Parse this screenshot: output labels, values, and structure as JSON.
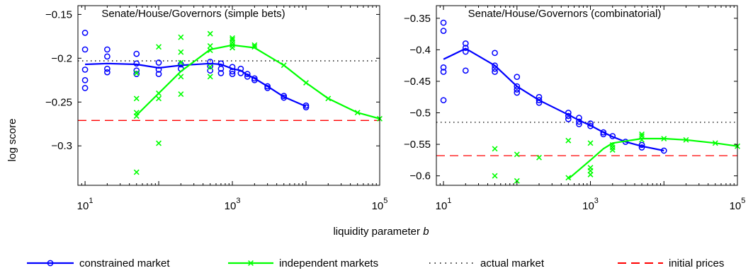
{
  "figure": {
    "ylabel": "log score",
    "xlabel": "liquidity parameter b",
    "xlabel_main": "liquidity parameter ",
    "xlabel_var": "b"
  },
  "legend": [
    {
      "label": "constrained market",
      "color": "#0000ff",
      "marker": "circle",
      "line": "solid"
    },
    {
      "label": "independent markets",
      "color": "#00ff00",
      "marker": "x",
      "line": "solid"
    },
    {
      "label": "actual market",
      "color": "#000000",
      "marker": "none",
      "line": "dotted"
    },
    {
      "label": "initial prices",
      "color": "#ff0000",
      "marker": "none",
      "line": "dashed"
    }
  ],
  "chart_data": [
    {
      "type": "line",
      "title": "Senate/House/Governors (simple bets)",
      "xscale": "log",
      "xlim": [
        8,
        100000
      ],
      "ylim": [
        -0.345,
        -0.14
      ],
      "xticks": [
        {
          "value": 10,
          "base": "10",
          "exp": "1"
        },
        {
          "value": 1000,
          "base": "10",
          "exp": "3"
        },
        {
          "value": 100000,
          "base": "10",
          "exp": "5"
        }
      ],
      "yticks": [
        {
          "value": -0.15,
          "label": "−0.15"
        },
        {
          "value": -0.2,
          "label": "−0.2"
        },
        {
          "value": -0.25,
          "label": "−0.25"
        },
        {
          "value": -0.3,
          "label": "−0.3"
        }
      ],
      "actual_market": -0.203,
      "initial_prices": -0.271,
      "series": [
        {
          "name": "constrained market",
          "color": "#0000ff",
          "marker": "circle",
          "line": [
            [
              10,
              -0.207
            ],
            [
              20,
              -0.206
            ],
            [
              50,
              -0.207
            ],
            [
              100,
              -0.211
            ],
            [
              200,
              -0.208
            ],
            [
              500,
              -0.206
            ],
            [
              700,
              -0.207
            ],
            [
              1000,
              -0.212
            ],
            [
              1300,
              -0.214
            ],
            [
              1600,
              -0.219
            ],
            [
              2000,
              -0.223
            ],
            [
              3000,
              -0.232
            ],
            [
              5000,
              -0.244
            ],
            [
              10000,
              -0.255
            ]
          ],
          "points": [
            [
              10,
              -0.171
            ],
            [
              10,
              -0.19
            ],
            [
              10,
              -0.213
            ],
            [
              10,
              -0.225
            ],
            [
              10,
              -0.234
            ],
            [
              20,
              -0.19
            ],
            [
              20,
              -0.198
            ],
            [
              20,
              -0.212
            ],
            [
              20,
              -0.216
            ],
            [
              50,
              -0.195
            ],
            [
              50,
              -0.206
            ],
            [
              50,
              -0.214
            ],
            [
              50,
              -0.218
            ],
            [
              100,
              -0.205
            ],
            [
              100,
              -0.213
            ],
            [
              100,
              -0.218
            ],
            [
              200,
              -0.207
            ],
            [
              200,
              -0.212
            ],
            [
              500,
              -0.204
            ],
            [
              500,
              -0.209
            ],
            [
              500,
              -0.214
            ],
            [
              700,
              -0.206
            ],
            [
              700,
              -0.212
            ],
            [
              700,
              -0.217
            ],
            [
              1000,
              -0.21
            ],
            [
              1000,
              -0.215
            ],
            [
              1000,
              -0.218
            ],
            [
              1300,
              -0.212
            ],
            [
              1300,
              -0.217
            ],
            [
              1600,
              -0.218
            ],
            [
              1600,
              -0.221
            ],
            [
              2000,
              -0.223
            ],
            [
              2000,
              -0.225
            ],
            [
              3000,
              -0.232
            ],
            [
              3000,
              -0.234
            ],
            [
              5000,
              -0.243
            ],
            [
              5000,
              -0.245
            ],
            [
              10000,
              -0.254
            ],
            [
              10000,
              -0.256
            ]
          ]
        },
        {
          "name": "independent markets",
          "color": "#00ff00",
          "marker": "x",
          "line": [
            [
              50,
              -0.265
            ],
            [
              100,
              -0.24
            ],
            [
              200,
              -0.215
            ],
            [
              500,
              -0.19
            ],
            [
              1000,
              -0.185
            ],
            [
              2000,
              -0.188
            ],
            [
              5000,
              -0.208
            ],
            [
              10000,
              -0.228
            ],
            [
              20000,
              -0.246
            ],
            [
              50000,
              -0.262
            ],
            [
              100000,
              -0.269
            ]
          ],
          "points": [
            [
              50,
              -0.217
            ],
            [
              50,
              -0.246
            ],
            [
              50,
              -0.262
            ],
            [
              50,
              -0.266
            ],
            [
              50,
              -0.33
            ],
            [
              100,
              -0.187
            ],
            [
              100,
              -0.24
            ],
            [
              100,
              -0.246
            ],
            [
              100,
              -0.297
            ],
            [
              200,
              -0.176
            ],
            [
              200,
              -0.193
            ],
            [
              200,
              -0.205
            ],
            [
              200,
              -0.221
            ],
            [
              200,
              -0.241
            ],
            [
              500,
              -0.172
            ],
            [
              500,
              -0.186
            ],
            [
              500,
              -0.191
            ],
            [
              500,
              -0.21
            ],
            [
              500,
              -0.221
            ],
            [
              1000,
              -0.177
            ],
            [
              1000,
              -0.179
            ],
            [
              1000,
              -0.182
            ],
            [
              1000,
              -0.185
            ],
            [
              1000,
              -0.188
            ],
            [
              2000,
              -0.185
            ],
            [
              2000,
              -0.187
            ],
            [
              5000,
              -0.208
            ],
            [
              10000,
              -0.228
            ],
            [
              20000,
              -0.246
            ],
            [
              50000,
              -0.262
            ],
            [
              100000,
              -0.269
            ]
          ]
        }
      ]
    },
    {
      "type": "line",
      "title": "Senate/House/Governors (combinatorial)",
      "xscale": "log",
      "xlim": [
        8,
        100000
      ],
      "ylim": [
        -0.615,
        -0.33
      ],
      "xticks": [
        {
          "value": 10,
          "base": "10",
          "exp": "1"
        },
        {
          "value": 1000,
          "base": "10",
          "exp": "3"
        },
        {
          "value": 100000,
          "base": "10",
          "exp": "5"
        }
      ],
      "yticks": [
        {
          "value": -0.35,
          "label": "−0.35"
        },
        {
          "value": -0.4,
          "label": "−0.4"
        },
        {
          "value": -0.45,
          "label": "−0.45"
        },
        {
          "value": -0.5,
          "label": "−0.5"
        },
        {
          "value": -0.55,
          "label": "−0.55"
        },
        {
          "value": -0.6,
          "label": "−0.6"
        }
      ],
      "actual_market": -0.515,
      "initial_prices": -0.568,
      "series": [
        {
          "name": "constrained market",
          "color": "#0000ff",
          "marker": "circle",
          "line": [
            [
              10,
              -0.415
            ],
            [
              20,
              -0.398
            ],
            [
              50,
              -0.425
            ],
            [
              100,
              -0.458
            ],
            [
              200,
              -0.48
            ],
            [
              500,
              -0.503
            ],
            [
              700,
              -0.512
            ],
            [
              1000,
              -0.52
            ],
            [
              1500,
              -0.531
            ],
            [
              2000,
              -0.538
            ],
            [
              3000,
              -0.546
            ],
            [
              5000,
              -0.553
            ],
            [
              10000,
              -0.56
            ]
          ],
          "points": [
            [
              10,
              -0.357
            ],
            [
              10,
              -0.37
            ],
            [
              10,
              -0.428
            ],
            [
              10,
              -0.435
            ],
            [
              10,
              -0.48
            ],
            [
              20,
              -0.39
            ],
            [
              20,
              -0.397
            ],
            [
              20,
              -0.403
            ],
            [
              20,
              -0.433
            ],
            [
              50,
              -0.405
            ],
            [
              50,
              -0.425
            ],
            [
              50,
              -0.43
            ],
            [
              50,
              -0.435
            ],
            [
              100,
              -0.443
            ],
            [
              100,
              -0.458
            ],
            [
              100,
              -0.463
            ],
            [
              100,
              -0.468
            ],
            [
              200,
              -0.475
            ],
            [
              200,
              -0.48
            ],
            [
              200,
              -0.484
            ],
            [
              500,
              -0.5
            ],
            [
              500,
              -0.505
            ],
            [
              500,
              -0.51
            ],
            [
              700,
              -0.508
            ],
            [
              700,
              -0.514
            ],
            [
              700,
              -0.518
            ],
            [
              1000,
              -0.517
            ],
            [
              1000,
              -0.521
            ],
            [
              1500,
              -0.531
            ],
            [
              1500,
              -0.534
            ],
            [
              2000,
              -0.537
            ],
            [
              3000,
              -0.546
            ],
            [
              5000,
              -0.551
            ],
            [
              5000,
              -0.555
            ],
            [
              10000,
              -0.56
            ]
          ]
        },
        {
          "name": "independent markets",
          "color": "#00ff00",
          "marker": "x",
          "line": [
            [
              500,
              -0.605
            ],
            [
              1000,
              -0.575
            ],
            [
              1500,
              -0.557
            ],
            [
              2000,
              -0.548
            ],
            [
              5000,
              -0.541
            ],
            [
              10000,
              -0.541
            ],
            [
              20000,
              -0.543
            ],
            [
              50000,
              -0.548
            ],
            [
              100000,
              -0.553
            ]
          ],
          "points": [
            [
              50,
              -0.557
            ],
            [
              50,
              -0.6
            ],
            [
              100,
              -0.566
            ],
            [
              100,
              -0.608
            ],
            [
              200,
              -0.571
            ],
            [
              500,
              -0.544
            ],
            [
              500,
              -0.603
            ],
            [
              1000,
              -0.548
            ],
            [
              1000,
              -0.587
            ],
            [
              1000,
              -0.592
            ],
            [
              1000,
              -0.598
            ],
            [
              2000,
              -0.551
            ],
            [
              2000,
              -0.555
            ],
            [
              2000,
              -0.559
            ],
            [
              5000,
              -0.534
            ],
            [
              5000,
              -0.537
            ],
            [
              5000,
              -0.543
            ],
            [
              10000,
              -0.541
            ],
            [
              20000,
              -0.543
            ],
            [
              50000,
              -0.548
            ],
            [
              100000,
              -0.553
            ]
          ]
        }
      ]
    }
  ]
}
